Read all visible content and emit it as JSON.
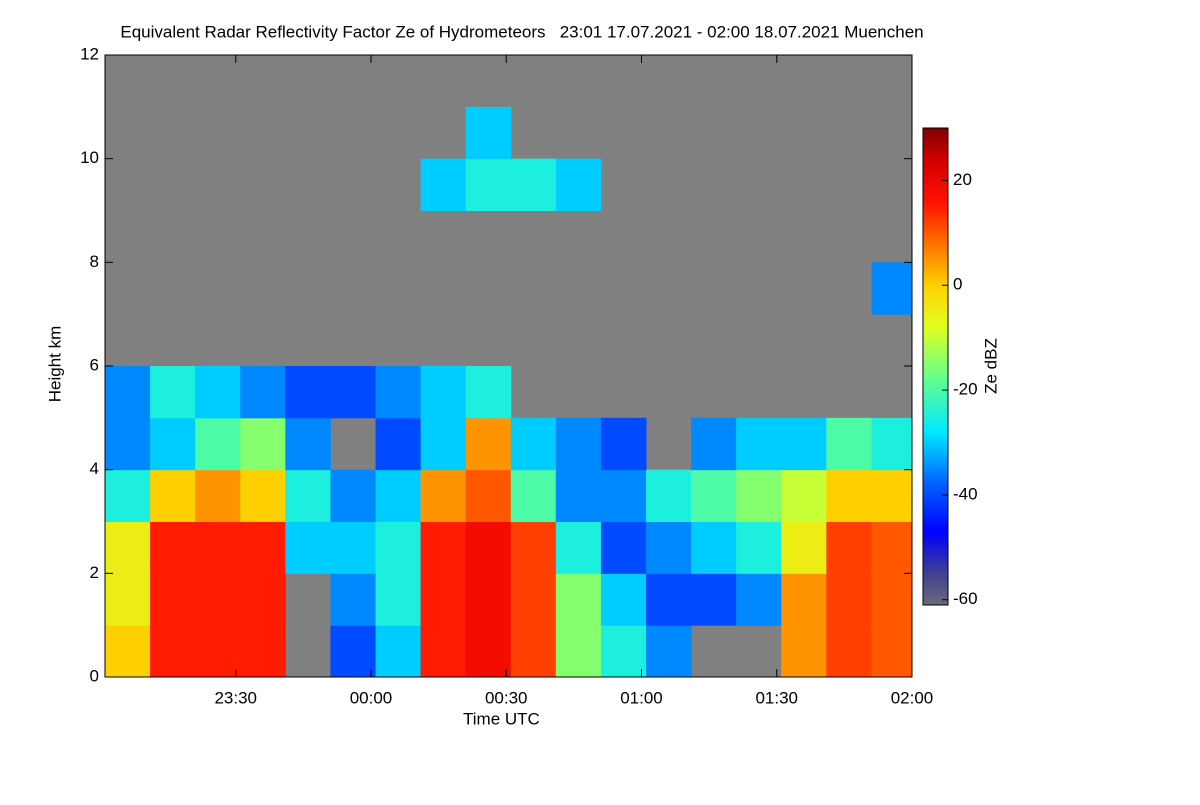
{
  "chart_data": {
    "type": "heatmap",
    "title": "Equivalent Radar Reflectivity Factor Ze of Hydrometeors   23:01 17.07.2021 - 02:00 18.07.2021 Muenchen",
    "x_label": "Time UTC",
    "y_label": "Height km",
    "colorbar_label": "Ze dBZ",
    "x": [
      "23:06",
      "23:16",
      "23:26",
      "23:36",
      "23:46",
      "23:56",
      "00:06",
      "00:16",
      "00:26",
      "00:36",
      "00:46",
      "00:56",
      "01:06",
      "01:16",
      "01:26",
      "01:36",
      "01:46",
      "01:56"
    ],
    "y": [
      0.5,
      1.5,
      2.5,
      3.5,
      4.5,
      5.5,
      6.5,
      7.5,
      8.5,
      9.5,
      10.5,
      11.5
    ],
    "z": [
      [
        0,
        15,
        15,
        15,
        null,
        -40,
        -30,
        15,
        18,
        12,
        -15,
        -25,
        -35,
        null,
        null,
        5,
        12,
        10
      ],
      [
        -5,
        15,
        15,
        15,
        null,
        -35,
        -25,
        15,
        18,
        12,
        -15,
        -30,
        -40,
        -40,
        -35,
        5,
        12,
        10
      ],
      [
        -5,
        15,
        15,
        15,
        -30,
        -30,
        -25,
        15,
        18,
        12,
        -25,
        -40,
        -35,
        -30,
        -25,
        -5,
        12,
        10
      ],
      [
        -25,
        0,
        5,
        0,
        -25,
        -35,
        -30,
        5,
        10,
        -20,
        -35,
        -35,
        -25,
        -20,
        -15,
        -10,
        0,
        0
      ],
      [
        -35,
        -30,
        -20,
        -15,
        -35,
        null,
        -40,
        -30,
        5,
        -30,
        -35,
        -40,
        null,
        -35,
        -30,
        -30,
        -20,
        -25
      ],
      [
        -35,
        -25,
        -30,
        -35,
        -40,
        -40,
        -35,
        -30,
        -25,
        null,
        null,
        null,
        null,
        null,
        null,
        null,
        null,
        null
      ],
      [
        null,
        null,
        null,
        null,
        null,
        null,
        null,
        null,
        null,
        null,
        null,
        null,
        null,
        null,
        null,
        null,
        null,
        null
      ],
      [
        null,
        null,
        null,
        null,
        null,
        null,
        null,
        null,
        null,
        null,
        null,
        null,
        null,
        null,
        null,
        null,
        null,
        -35
      ],
      [
        null,
        null,
        null,
        null,
        null,
        null,
        null,
        null,
        null,
        null,
        null,
        null,
        null,
        null,
        null,
        null,
        null,
        null
      ],
      [
        null,
        null,
        null,
        null,
        null,
        null,
        null,
        -30,
        -25,
        -25,
        -30,
        null,
        null,
        null,
        null,
        null,
        null,
        null
      ],
      [
        null,
        null,
        null,
        null,
        null,
        null,
        null,
        null,
        -30,
        null,
        null,
        null,
        null,
        null,
        null,
        null,
        null,
        null
      ],
      [
        null,
        null,
        null,
        null,
        null,
        null,
        null,
        null,
        null,
        null,
        null,
        null,
        null,
        null,
        null,
        null,
        null,
        null
      ]
    ],
    "xlim": [
      "23:01",
      "02:00"
    ],
    "xticks": [
      "23:30",
      "00:00",
      "00:30",
      "01:00",
      "01:30",
      "02:00"
    ],
    "ylim": [
      0,
      12
    ],
    "yticks": [
      0,
      2,
      4,
      6,
      8,
      10,
      12
    ],
    "clim": [
      -61,
      30
    ],
    "cticks": [
      20,
      0,
      -20,
      -40,
      -60
    ],
    "background_color": "#808080",
    "colorscale": [
      [
        -61,
        "#6a6a7a"
      ],
      [
        -55,
        "#404090"
      ],
      [
        -47,
        "#0000ff"
      ],
      [
        -38,
        "#0060ff"
      ],
      [
        -28,
        "#00e8ff"
      ],
      [
        -18,
        "#60ff90"
      ],
      [
        -8,
        "#e0ff20"
      ],
      [
        0,
        "#ffd000"
      ],
      [
        8,
        "#ff7000"
      ],
      [
        16,
        "#ff1000"
      ],
      [
        24,
        "#d00000"
      ],
      [
        30,
        "#800000"
      ]
    ]
  }
}
